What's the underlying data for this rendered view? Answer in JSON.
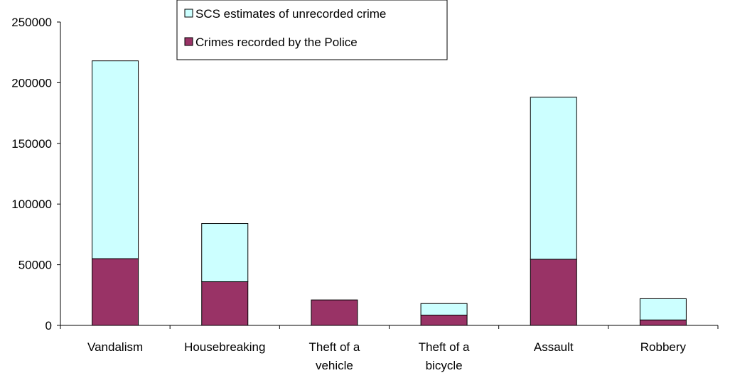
{
  "chart_data": {
    "type": "bar",
    "stacked": true,
    "categories": [
      [
        "Vandalism"
      ],
      [
        "Housebreaking"
      ],
      [
        "Theft of a",
        "vehicle"
      ],
      [
        "Theft of a",
        "bicycle"
      ],
      [
        "Assault"
      ],
      [
        "Robbery"
      ]
    ],
    "series": [
      {
        "name": "Crimes recorded by the Police",
        "color": "#993366",
        "values": [
          55000,
          36000,
          21000,
          8500,
          54500,
          4500
        ]
      },
      {
        "name": "SCS estimates of unrecorded crime",
        "color": "#CCFFFF",
        "values": [
          163000,
          48000,
          0,
          9500,
          133500,
          17500
        ]
      }
    ],
    "ylim": [
      0,
      250000
    ],
    "yticks": [
      0,
      50000,
      100000,
      150000,
      200000,
      250000
    ],
    "legend_order": [
      "SCS estimates of unrecorded crime",
      "Crimes recorded by the Police"
    ],
    "legend_position": "top-center",
    "grid": false,
    "title": "",
    "xlabel": "",
    "ylabel": ""
  }
}
